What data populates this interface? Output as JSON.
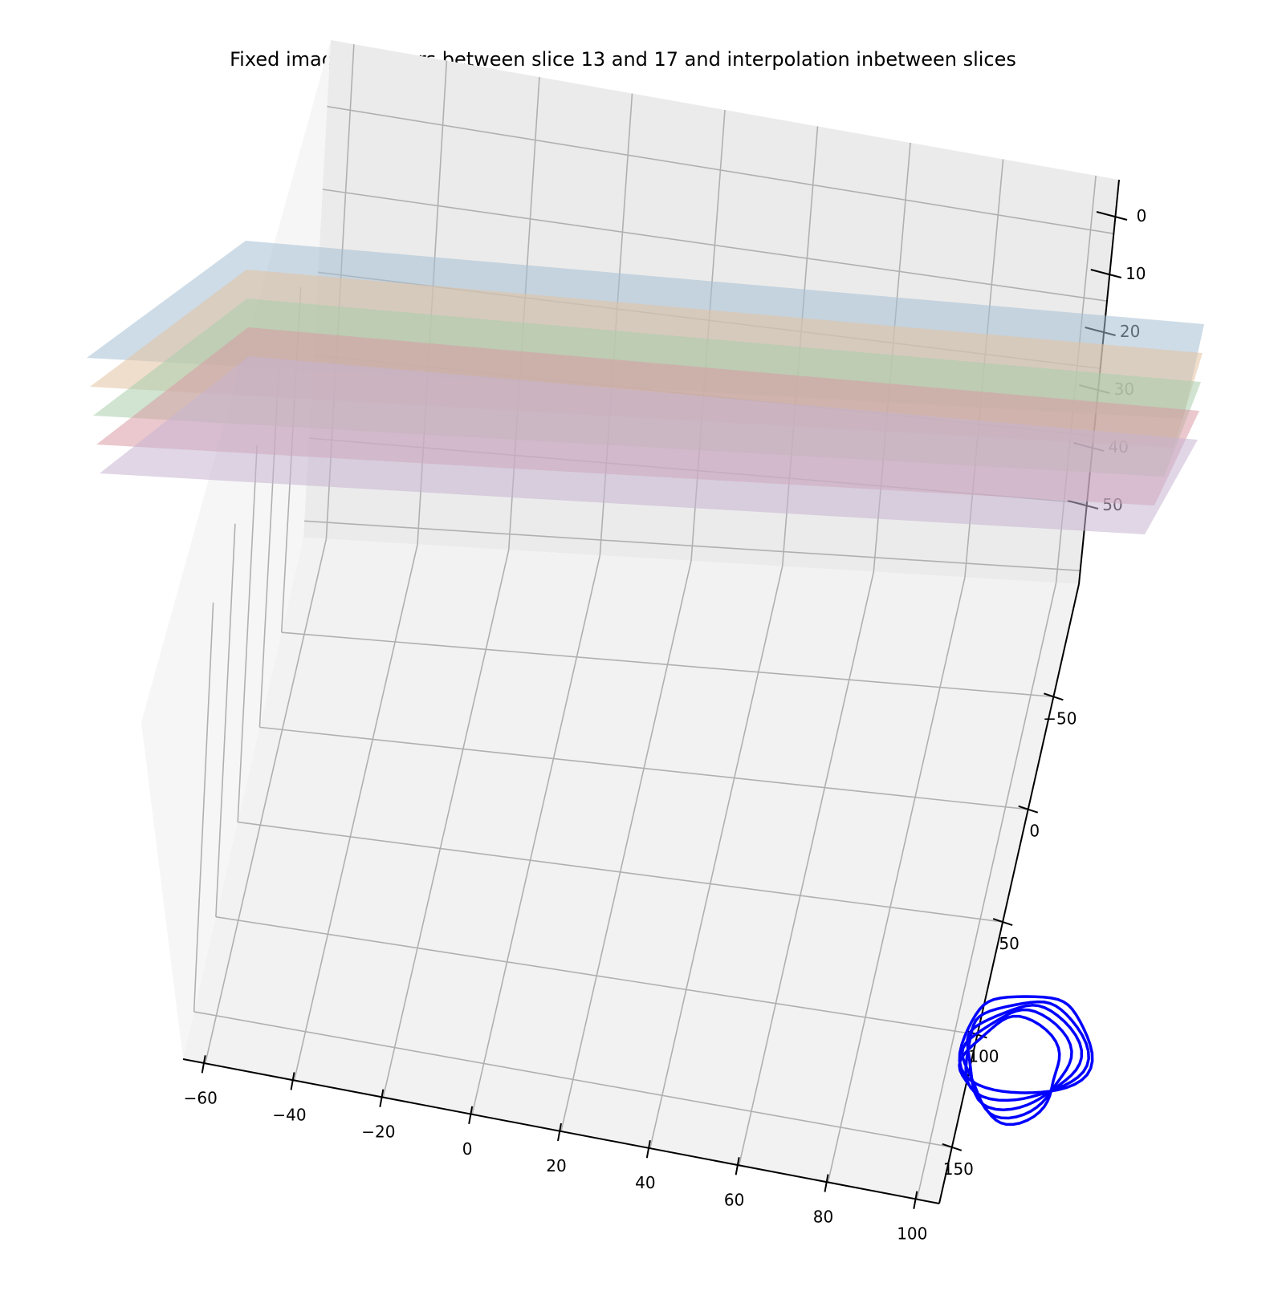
{
  "chart_data": {
    "type": "3d-line",
    "title": "Fixed image contours between slice 13 and 17 and interpolation inbetween slices",
    "xlabel": "",
    "ylabel": "",
    "zlabel": "",
    "x_ticks": [
      "−60",
      "−40",
      "−20",
      "0",
      "20",
      "40",
      "60",
      "80",
      "100"
    ],
    "y_ticks": [
      "−50",
      "0",
      "50",
      "100",
      "150"
    ],
    "z_ticks": [
      "0",
      "10",
      "20",
      "30",
      "40",
      "50"
    ],
    "xlim": [
      -65,
      105
    ],
    "ylim": [
      -100,
      175
    ],
    "zlim": [
      -2,
      58
    ],
    "grid": true,
    "planes": [
      {
        "z": 13,
        "color": "#a6c0d4"
      },
      {
        "z": 14,
        "color": "#e3c2a2"
      },
      {
        "z": 15,
        "color": "#a9cdac"
      },
      {
        "z": 16,
        "color": "#d99aa4"
      },
      {
        "z": 17,
        "color": "#c7b5d1"
      }
    ],
    "contour_color": "#0000ff",
    "contour_levels": [
      13,
      14,
      15,
      16,
      17
    ]
  }
}
